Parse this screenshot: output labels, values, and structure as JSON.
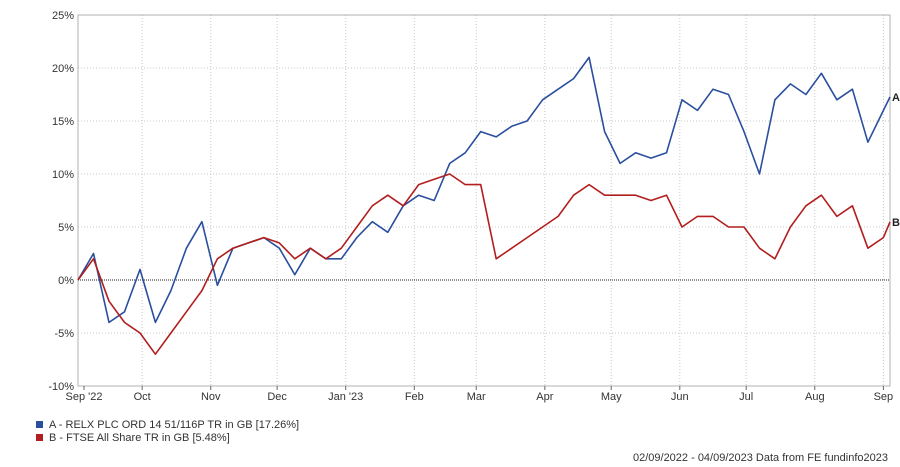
{
  "chart_data": {
    "type": "line",
    "yunit": "%",
    "ylim": [
      -10,
      25
    ],
    "yticks": [
      "-10%",
      "-5%",
      "0%",
      "5%",
      "10%",
      "15%",
      "20%",
      "25%"
    ],
    "xticks": [
      "Sep '22",
      "Oct",
      "Nov",
      "Dec",
      "Jan '23",
      "Feb",
      "Mar",
      "Apr",
      "May",
      "Jun",
      "Jul",
      "Aug",
      "Sep"
    ],
    "grid": true,
    "zero_line": "dotted",
    "series": [
      {
        "name": "A - RELX PLC ORD 14 51/116P TR in GB [17.26%]",
        "end_label": "A",
        "color": "#2a4f9e",
        "x": [
          "2022-09-02",
          "2022-09-09",
          "2022-09-16",
          "2022-09-23",
          "2022-09-30",
          "2022-10-07",
          "2022-10-14",
          "2022-10-21",
          "2022-10-28",
          "2022-11-04",
          "2022-11-11",
          "2022-11-18",
          "2022-11-25",
          "2022-12-02",
          "2022-12-09",
          "2022-12-16",
          "2022-12-23",
          "2022-12-30",
          "2023-01-06",
          "2023-01-13",
          "2023-01-20",
          "2023-01-27",
          "2023-02-03",
          "2023-02-10",
          "2023-02-17",
          "2023-02-24",
          "2023-03-03",
          "2023-03-10",
          "2023-03-17",
          "2023-03-24",
          "2023-03-31",
          "2023-04-07",
          "2023-04-14",
          "2023-04-21",
          "2023-04-28",
          "2023-05-05",
          "2023-05-12",
          "2023-05-19",
          "2023-05-26",
          "2023-06-02",
          "2023-06-09",
          "2023-06-16",
          "2023-06-23",
          "2023-06-30",
          "2023-07-07",
          "2023-07-14",
          "2023-07-21",
          "2023-07-28",
          "2023-08-04",
          "2023-08-11",
          "2023-08-18",
          "2023-08-25",
          "2023-09-01",
          "2023-09-04"
        ],
        "values": [
          0,
          2.5,
          -4,
          -3,
          1,
          -4,
          -1,
          3,
          5.5,
          -0.5,
          3,
          3.5,
          4,
          3,
          0.5,
          3,
          2,
          2,
          4,
          5.5,
          4.5,
          7,
          8,
          7.5,
          11,
          12,
          14,
          13.5,
          14.5,
          15,
          17,
          18,
          19,
          21,
          14,
          11,
          12,
          11.5,
          12,
          17,
          16,
          18,
          17.5,
          14,
          10,
          17,
          18.5,
          17.5,
          19.5,
          17,
          18,
          13,
          16,
          17.26
        ]
      },
      {
        "name": "B - FTSE All Share TR in GB [5.48%]",
        "end_label": "B",
        "color": "#b21e1e",
        "x": [
          "2022-09-02",
          "2022-09-09",
          "2022-09-16",
          "2022-09-23",
          "2022-09-30",
          "2022-10-07",
          "2022-10-14",
          "2022-10-21",
          "2022-10-28",
          "2022-11-04",
          "2022-11-11",
          "2022-11-18",
          "2022-11-25",
          "2022-12-02",
          "2022-12-09",
          "2022-12-16",
          "2022-12-23",
          "2022-12-30",
          "2023-01-06",
          "2023-01-13",
          "2023-01-20",
          "2023-01-27",
          "2023-02-03",
          "2023-02-10",
          "2023-02-17",
          "2023-02-24",
          "2023-03-03",
          "2023-03-10",
          "2023-03-17",
          "2023-03-24",
          "2023-03-31",
          "2023-04-07",
          "2023-04-14",
          "2023-04-21",
          "2023-04-28",
          "2023-05-05",
          "2023-05-12",
          "2023-05-19",
          "2023-05-26",
          "2023-06-02",
          "2023-06-09",
          "2023-06-16",
          "2023-06-23",
          "2023-06-30",
          "2023-07-07",
          "2023-07-14",
          "2023-07-21",
          "2023-07-28",
          "2023-08-04",
          "2023-08-11",
          "2023-08-18",
          "2023-08-25",
          "2023-09-01",
          "2023-09-04"
        ],
        "values": [
          0,
          2,
          -2,
          -4,
          -5,
          -7,
          -5,
          -3,
          -1,
          2,
          3,
          3.5,
          4,
          3.5,
          2,
          3,
          2,
          3,
          5,
          7,
          8,
          7,
          9,
          9.5,
          10,
          9,
          9,
          2,
          3,
          4,
          5,
          6,
          8,
          9,
          8,
          8,
          8,
          7.5,
          8,
          5,
          6,
          6,
          5,
          5,
          3,
          2,
          5,
          7,
          8,
          6,
          7,
          3,
          4,
          5.48
        ]
      }
    ]
  },
  "footer": "02/09/2022 - 04/09/2023 Data from FE fundinfo2023"
}
